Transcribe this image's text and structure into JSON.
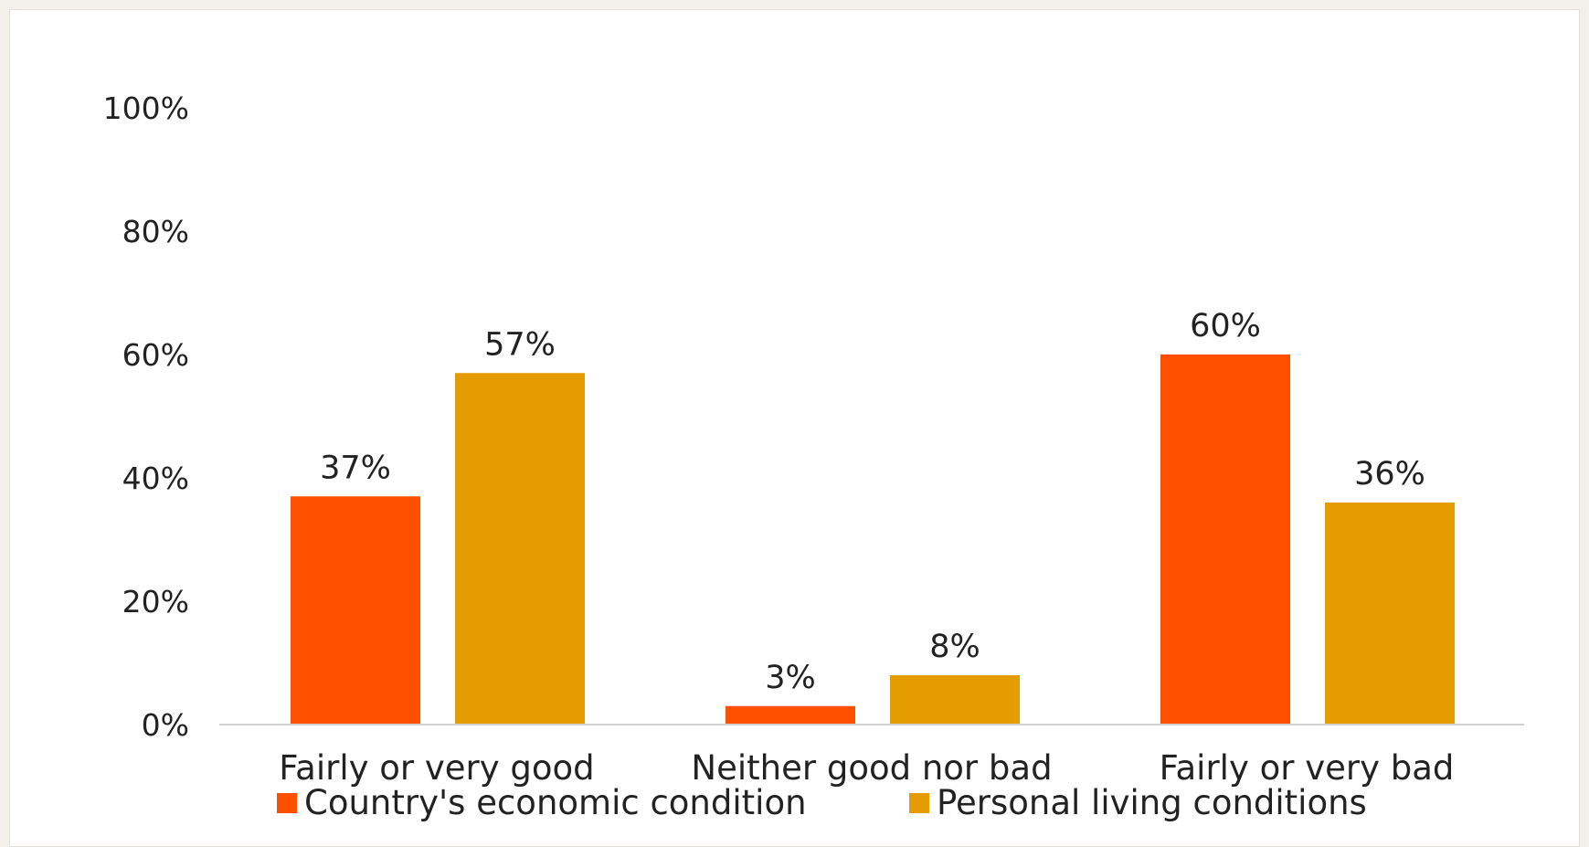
{
  "chart_data": {
    "type": "bar",
    "categories": [
      "Fairly or very good",
      "Neither good nor bad",
      "Fairly or very bad"
    ],
    "series": [
      {
        "name": "Country's economic condition",
        "values": [
          37,
          3,
          60
        ],
        "color": "#ff5000"
      },
      {
        "name": "Personal living conditions",
        "values": [
          57,
          8,
          36
        ],
        "color": "#e59c00"
      }
    ],
    "ylim": [
      0,
      100
    ],
    "yticks": [
      "0%",
      "20%",
      "40%",
      "60%",
      "80%",
      "100%"
    ],
    "ytick_values": [
      0,
      20,
      40,
      60,
      80,
      100
    ],
    "data_labels": [
      [
        "37%",
        "3%",
        "60%"
      ],
      [
        "57%",
        "8%",
        "36%"
      ]
    ],
    "grid": false,
    "legend_position": "bottom",
    "title": "",
    "xlabel": "",
    "ylabel": ""
  }
}
